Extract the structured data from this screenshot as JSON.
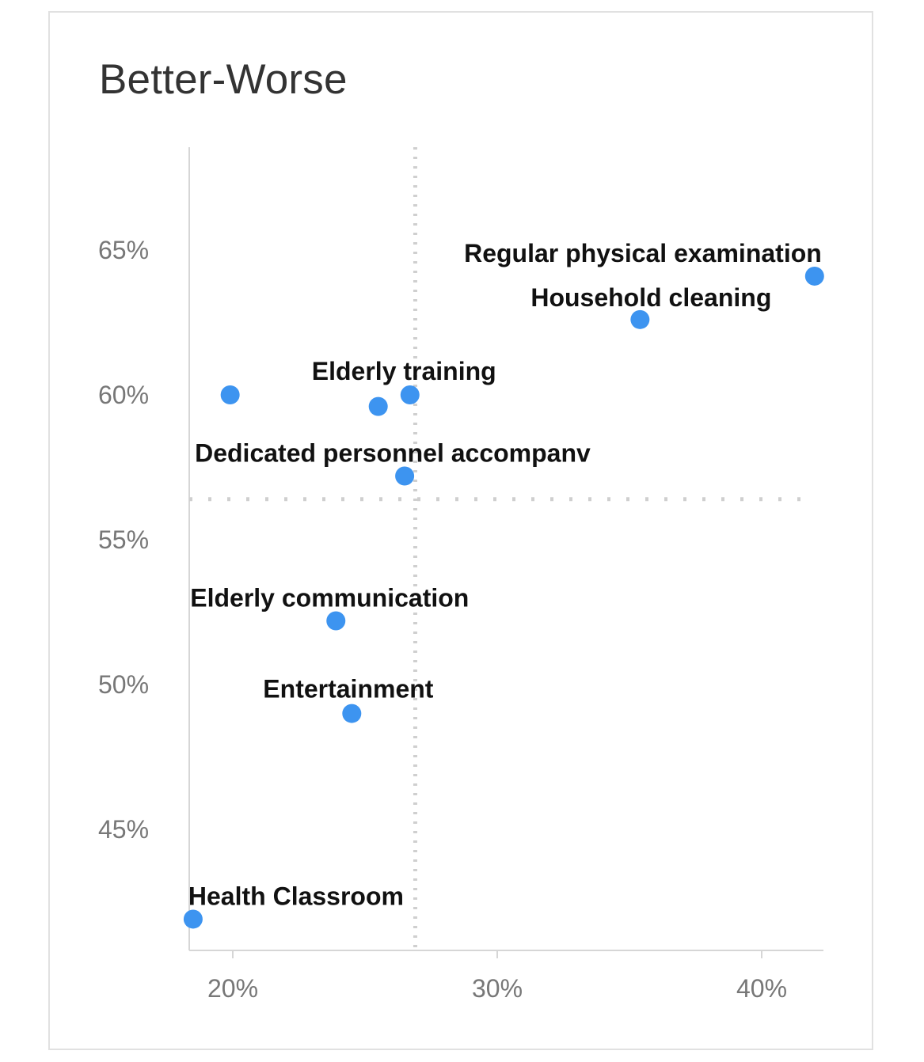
{
  "chart_data": {
    "type": "scatter",
    "title": "Better-Worse",
    "xlabel": "",
    "ylabel": "",
    "xlim": [
      18.0,
      42.5
    ],
    "ylim": [
      41.5,
      69.0
    ],
    "x_ticks": [
      {
        "value": 20,
        "label": "20%"
      },
      {
        "value": 30,
        "label": "30%"
      },
      {
        "value": 40,
        "label": "40%"
      }
    ],
    "y_ticks": [
      {
        "value": 65,
        "label": "65%"
      },
      {
        "value": 60,
        "label": "60%"
      },
      {
        "value": 55,
        "label": "55%"
      },
      {
        "value": 50,
        "label": "50%"
      },
      {
        "value": 45,
        "label": "45%"
      }
    ],
    "reference_lines": {
      "x": 26.9,
      "y": 56.4
    },
    "color": "#3d94f0",
    "points": [
      {
        "label": "Regular physical examination",
        "x": 42.0,
        "y": 64.1
      },
      {
        "label": "Household cleaning",
        "x": 35.4,
        "y": 62.6
      },
      {
        "label": "Elderly training",
        "x": 26.7,
        "y": 60.0
      },
      {
        "label": "",
        "x": 19.9,
        "y": 60.0
      },
      {
        "label": "",
        "x": 25.5,
        "y": 59.6
      },
      {
        "label": "Dedicated personnel accompanv",
        "x": 26.5,
        "y": 57.2
      },
      {
        "label": "Elderly communication",
        "x": 23.9,
        "y": 52.2
      },
      {
        "label": "Entertainment",
        "x": 24.5,
        "y": 49.0
      },
      {
        "label": "Health Classroom",
        "x": 18.5,
        "y": 41.9
      }
    ]
  }
}
